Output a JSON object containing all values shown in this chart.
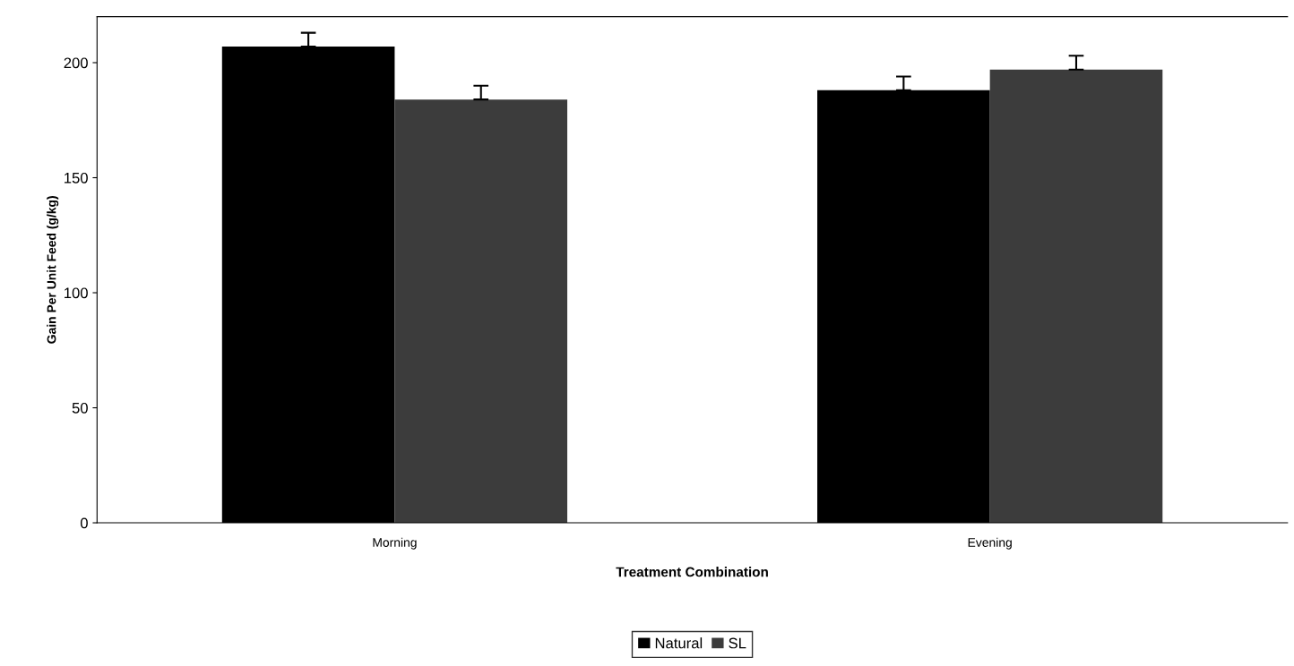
{
  "chart_data": {
    "type": "bar",
    "xlabel": "Treatment Combination",
    "ylabel": "Gain Per Unit Feed (g/kg)",
    "categories": [
      "Morning",
      "Evening"
    ],
    "series": [
      {
        "name": "Natural",
        "color": "#000000",
        "values": [
          207,
          188
        ],
        "errors": [
          6,
          6
        ]
      },
      {
        "name": "SL",
        "color": "#3c3c3c",
        "values": [
          184,
          197
        ],
        "errors": [
          6,
          6
        ]
      }
    ],
    "ylim": [
      0,
      220
    ],
    "yticks": [
      0,
      50,
      100,
      150,
      200
    ],
    "grid": false,
    "legend": "bottom"
  }
}
